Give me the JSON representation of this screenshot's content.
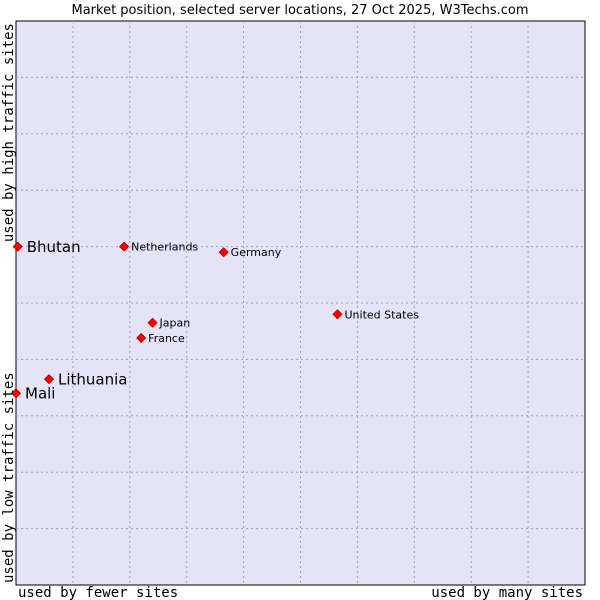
{
  "chart_data": {
    "type": "scatter",
    "title": "Market position, selected server locations, 27 Oct 2025, W3Techs.com",
    "xlabel_left": "used by fewer sites",
    "xlabel_right": "used by many sites",
    "ylabel_bottom": "used by low traffic sites",
    "ylabel_top": "used by high traffic sites",
    "xlim": [
      0,
      100
    ],
    "ylim": [
      0,
      100
    ],
    "grid": true,
    "colors": {
      "background": "#e4e4f6",
      "grid": "#a0a0c0",
      "point": "#ff0000",
      "frame": "#000000"
    },
    "points": [
      {
        "label": "Bhutan",
        "x": 0.3,
        "y": 60.0,
        "highlight": true
      },
      {
        "label": "Netherlands",
        "x": 19.0,
        "y": 60.0,
        "highlight": false
      },
      {
        "label": "Germany",
        "x": 36.5,
        "y": 59.0,
        "highlight": false
      },
      {
        "label": "United States",
        "x": 56.5,
        "y": 48.0,
        "highlight": false
      },
      {
        "label": "Japan",
        "x": 24.0,
        "y": 46.5,
        "highlight": false
      },
      {
        "label": "France",
        "x": 22.0,
        "y": 43.8,
        "highlight": false
      },
      {
        "label": "Lithuania",
        "x": 5.8,
        "y": 36.5,
        "highlight": true
      },
      {
        "label": "Mali",
        "x": 0.0,
        "y": 34.0,
        "highlight": true
      }
    ]
  }
}
